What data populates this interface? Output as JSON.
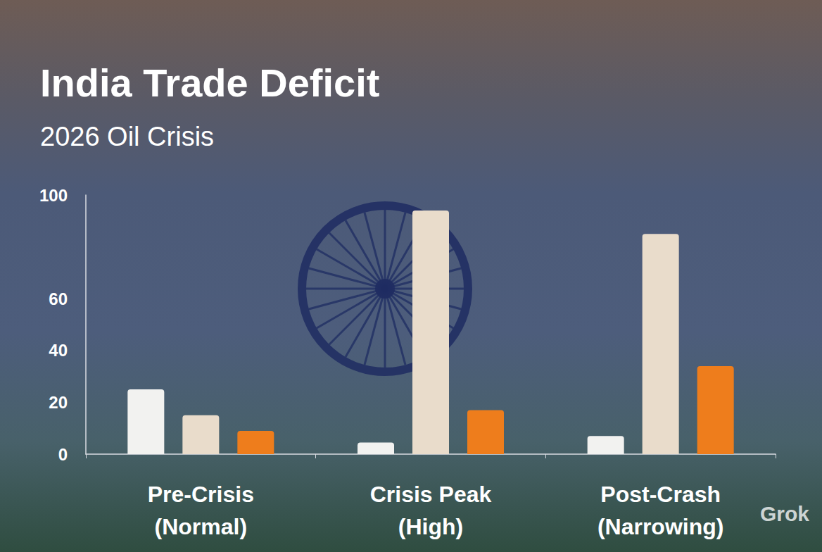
{
  "chart_data": {
    "type": "bar",
    "title": "India Trade Deficit",
    "subtitle": "2026 Oil Crisis",
    "categories": [
      "Pre-Crisis\n(Normal)",
      "Crisis Peak\n(High)",
      "Post-Crash\n(Narrowing)"
    ],
    "series": [
      {
        "color": "#f2f2f0",
        "values": [
          25,
          4.5,
          7
        ]
      },
      {
        "color": "#e9dccb",
        "values": [
          15,
          94,
          85
        ]
      },
      {
        "color": "#ee7d1c",
        "values": [
          9,
          17,
          34
        ]
      }
    ],
    "ylim": [
      0,
      100
    ],
    "yticks": [
      0,
      20,
      40,
      60,
      100
    ],
    "grid": false,
    "annotations": [
      "Grok"
    ]
  }
}
